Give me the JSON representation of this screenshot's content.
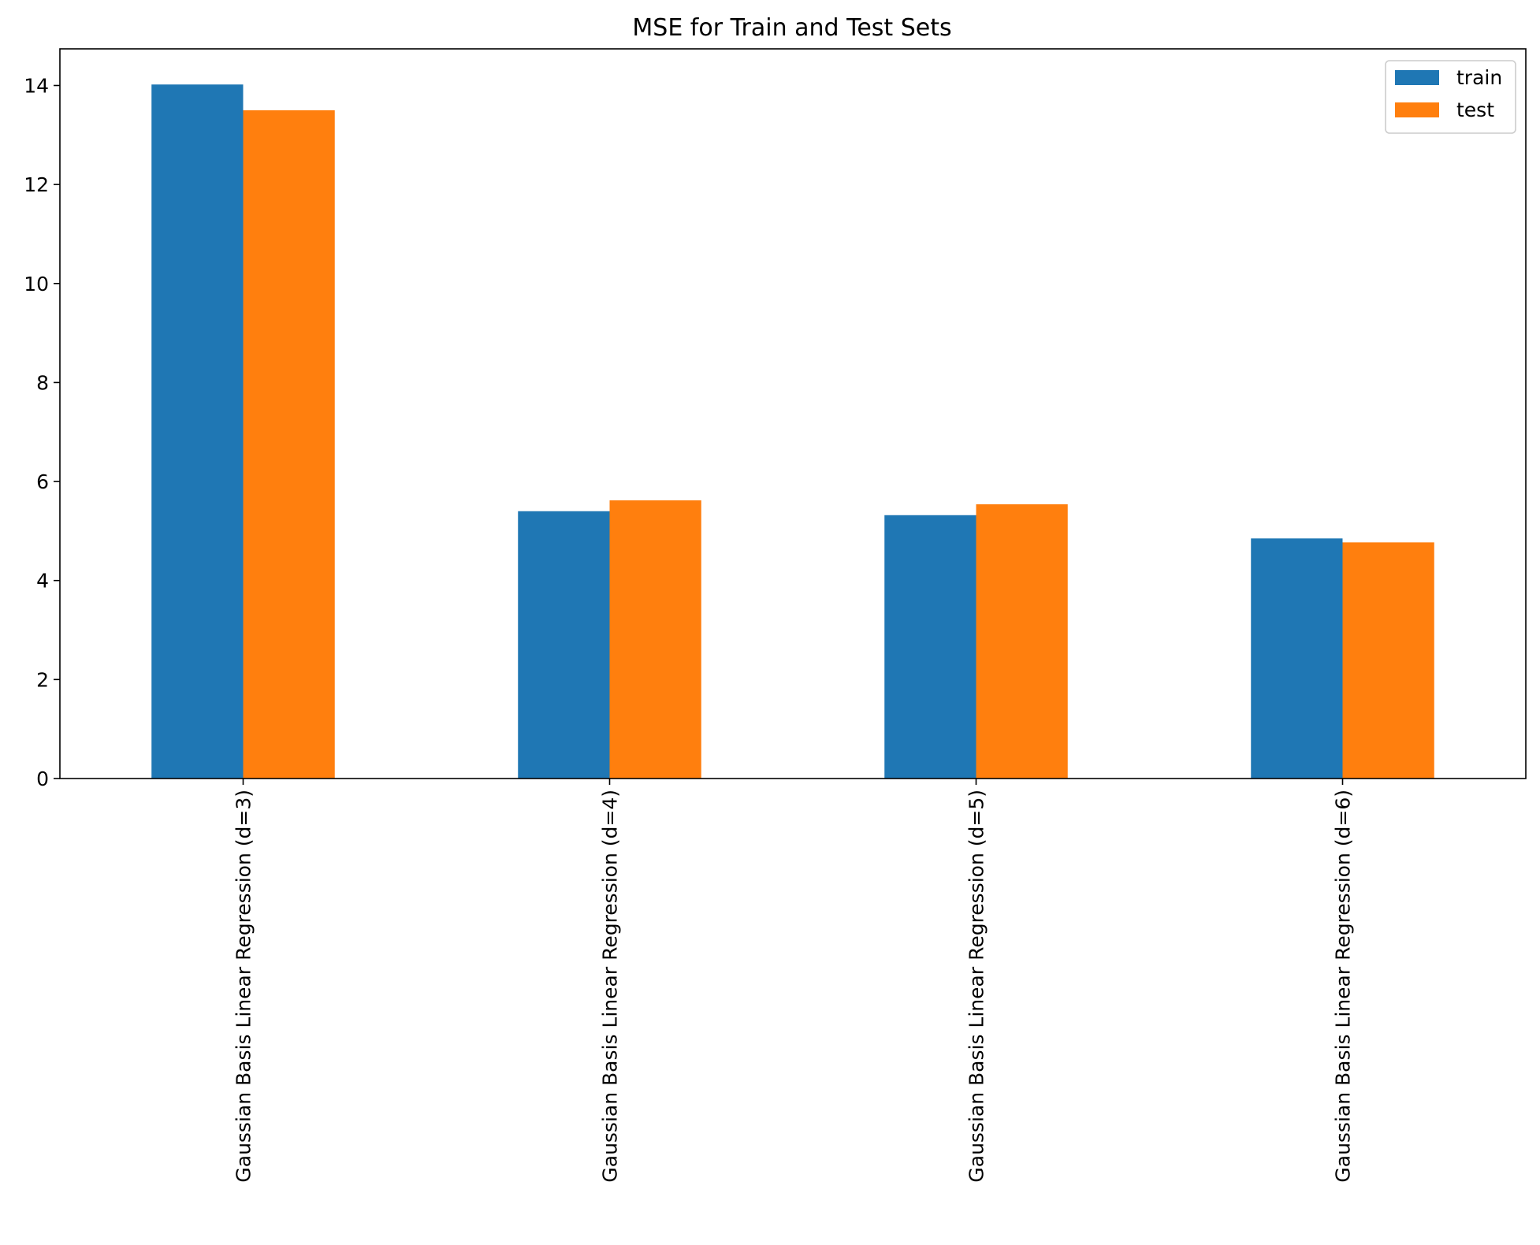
{
  "chart_data": {
    "type": "bar",
    "title": "MSE for Train and Test Sets",
    "xlabel": "",
    "ylabel": "",
    "categories": [
      "Gaussian Basis Linear Regression (d=3)",
      "Gaussian Basis Linear Regression (d=4)",
      "Gaussian Basis Linear Regression (d=5)",
      "Gaussian Basis Linear Regression (d=6)"
    ],
    "series": [
      {
        "name": "train",
        "color": "#1f77b4",
        "values": [
          14.02,
          5.4,
          5.32,
          4.85
        ]
      },
      {
        "name": "test",
        "color": "#ff7f0e",
        "values": [
          13.5,
          5.62,
          5.54,
          4.77
        ]
      }
    ],
    "ylim": [
      0,
      14.74
    ],
    "yticks": [
      0,
      2,
      4,
      6,
      8,
      10,
      12,
      14
    ],
    "ytick_labels": [
      "0",
      "2",
      "4",
      "6",
      "8",
      "10",
      "12",
      "14"
    ],
    "grid": false,
    "legend_position": "top-right"
  }
}
